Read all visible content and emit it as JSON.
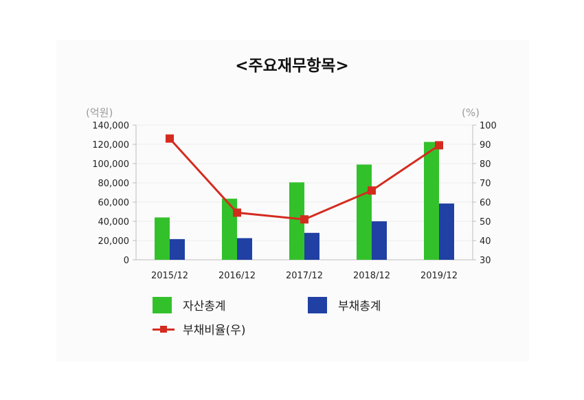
{
  "chart_data": {
    "type": "bar",
    "title": "<주요재무항목>",
    "categories": [
      "2015/12",
      "2016/12",
      "2017/12",
      "2018/12",
      "2019/12"
    ],
    "y_left": {
      "unit_label": "(억원)",
      "range": [
        0,
        140000
      ],
      "ticks": [
        "0",
        "20,000",
        "40,000",
        "60,000",
        "80,000",
        "100,000",
        "120,000",
        "140,000"
      ]
    },
    "y_right": {
      "unit_label": "(%)",
      "range": [
        30,
        100
      ],
      "ticks": [
        "30",
        "40",
        "50",
        "60",
        "70",
        "80",
        "90",
        "100"
      ]
    },
    "series": [
      {
        "name": "자산총계",
        "type": "bar",
        "axis": "left",
        "color": "#33c12b",
        "values": [
          44000,
          63500,
          80500,
          99000,
          122500
        ]
      },
      {
        "name": "부채총계",
        "type": "bar",
        "axis": "left",
        "color": "#2040a4",
        "values": [
          21500,
          22500,
          28000,
          40000,
          58500
        ]
      },
      {
        "name": "부채비율(우)",
        "type": "line",
        "axis": "right",
        "color": "#d42b1f",
        "values": [
          93,
          54.5,
          51,
          66,
          89.5
        ]
      }
    ],
    "grid": true,
    "legend_position": "bottom"
  }
}
